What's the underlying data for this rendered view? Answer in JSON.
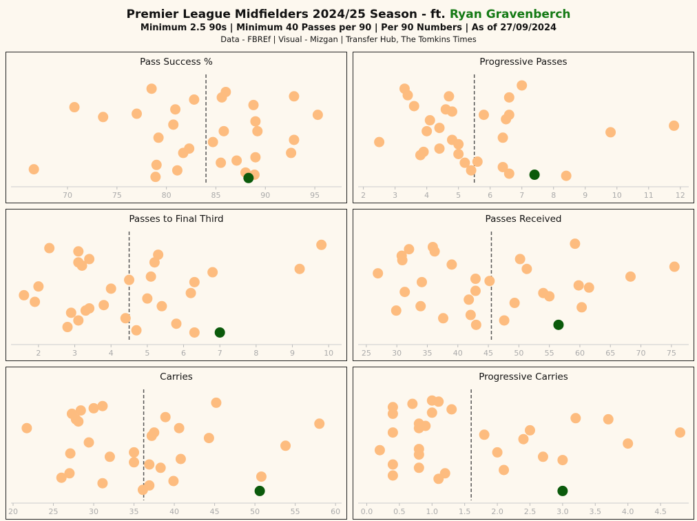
{
  "header": {
    "title_prefix": "Premier League Midfielders 2024/25 Season - ft. ",
    "player": "Ryan Gravenberch",
    "subtitle": "Minimum 2.5 90s | Minimum 40 Passes per 90 | Per 90 Numbers | As of 27/09/2024",
    "source": "Data - FBREf | Visual - Mizgan | Transfer Hub, The Tomkins Times"
  },
  "colors": {
    "others": "#fdbc7f",
    "highlight": "#0b5a0b",
    "median_line": "#555555",
    "panel_bg": "#fdf8ef",
    "title_player": "#157a15"
  },
  "chart_data": [
    {
      "type": "scatter",
      "title": "Pass Success %",
      "xlim": [
        64.5,
        97.5
      ],
      "ticks": [
        70,
        75,
        80,
        85,
        90,
        95
      ],
      "tick_labels": [
        "70",
        "75",
        "80",
        "85",
        "90",
        "95"
      ],
      "median": 84.0,
      "x": [
        86.0,
        78.5,
        92.9,
        88.8,
        70.7,
        82.8,
        85.6,
        95.3,
        73.6,
        77.0,
        80.9,
        89.0,
        80.7,
        85.8,
        89.2,
        79.2,
        84.7,
        92.9,
        82.3,
        81.7,
        89.0,
        92.6,
        87.1,
        85.5,
        79.0,
        88.0,
        81.1,
        66.6,
        78.9,
        88.9
      ],
      "y": [
        0.82,
        0.85,
        0.78,
        0.7,
        0.68,
        0.75,
        0.77,
        0.61,
        0.59,
        0.62,
        0.66,
        0.55,
        0.52,
        0.46,
        0.46,
        0.4,
        0.36,
        0.38,
        0.3,
        0.26,
        0.22,
        0.26,
        0.19,
        0.17,
        0.15,
        0.08,
        0.1,
        0.11,
        0.04,
        0.06
      ],
      "highlight": {
        "x": 88.3,
        "y": 0.03
      }
    },
    {
      "type": "scatter",
      "title": "Progressive Passes",
      "xlim": [
        1.9,
        12.2
      ],
      "ticks": [
        2,
        3,
        4,
        5,
        6,
        7,
        8,
        9,
        10,
        11,
        12
      ],
      "tick_labels": [
        "2",
        "3",
        "4",
        "5",
        "6",
        "7",
        "8",
        "9",
        "10",
        "11",
        "12"
      ],
      "median": 5.5,
      "x": [
        3.3,
        3.4,
        4.7,
        7.0,
        3.6,
        6.6,
        4.6,
        4.8,
        5.8,
        6.5,
        6.6,
        4.1,
        4.4,
        11.8,
        4.0,
        9.8,
        6.4,
        4.8,
        2.5,
        5.0,
        4.4,
        3.9,
        5.0,
        3.8,
        5.6,
        5.2,
        6.4,
        5.4,
        6.6,
        8.4
      ],
      "y": [
        0.85,
        0.79,
        0.78,
        0.88,
        0.69,
        0.77,
        0.66,
        0.64,
        0.61,
        0.57,
        0.61,
        0.56,
        0.49,
        0.51,
        0.46,
        0.45,
        0.4,
        0.38,
        0.36,
        0.34,
        0.3,
        0.27,
        0.25,
        0.24,
        0.18,
        0.17,
        0.13,
        0.1,
        0.07,
        0.05
      ],
      "highlight": {
        "x": 7.4,
        "y": 0.06
      }
    },
    {
      "type": "scatter",
      "title": "Passes to Final Third",
      "xlim": [
        1.3,
        10.3
      ],
      "ticks": [
        2,
        3,
        4,
        5,
        6,
        7,
        8,
        9,
        10
      ],
      "tick_labels": [
        "2",
        "3",
        "4",
        "5",
        "6",
        "7",
        "8",
        "9",
        "10"
      ],
      "median": 4.5,
      "x": [
        9.8,
        2.3,
        3.1,
        5.3,
        3.4,
        5.2,
        3.1,
        3.2,
        9.2,
        6.8,
        5.1,
        4.5,
        2.0,
        6.3,
        4.0,
        1.6,
        6.2,
        1.9,
        5.0,
        3.8,
        5.4,
        3.4,
        3.3,
        2.9,
        4.4,
        3.1,
        5.8,
        2.8,
        4.7,
        6.3
      ],
      "y": [
        0.86,
        0.83,
        0.8,
        0.77,
        0.73,
        0.7,
        0.7,
        0.67,
        0.64,
        0.61,
        0.57,
        0.54,
        0.48,
        0.52,
        0.46,
        0.4,
        0.42,
        0.34,
        0.37,
        0.31,
        0.3,
        0.28,
        0.26,
        0.24,
        0.19,
        0.17,
        0.14,
        0.11,
        0.08,
        0.06
      ],
      "highlight": {
        "x": 7.0,
        "y": 0.06
      }
    },
    {
      "type": "scatter",
      "title": "Passes Received",
      "xlim": [
        24.0,
        77.5
      ],
      "ticks": [
        25,
        30,
        35,
        40,
        45,
        50,
        55,
        60,
        65,
        70,
        75
      ],
      "tick_labels": [
        "25",
        "30",
        "35",
        "40",
        "45",
        "50",
        "55",
        "60",
        "65",
        "70",
        "75"
      ],
      "median": 45.5,
      "x": [
        59.2,
        35.9,
        32.0,
        36.2,
        30.8,
        50.2,
        30.9,
        39.0,
        75.5,
        51.3,
        26.9,
        42.9,
        68.3,
        45.2,
        34.1,
        59.8,
        61.5,
        31.3,
        54.0,
        55.0,
        42.9,
        41.8,
        49.3,
        33.9,
        60.3,
        29.9,
        42.1,
        37.6,
        47.6,
        43.0
      ],
      "y": [
        0.87,
        0.84,
        0.82,
        0.8,
        0.76,
        0.73,
        0.72,
        0.68,
        0.66,
        0.64,
        0.6,
        0.55,
        0.57,
        0.53,
        0.52,
        0.49,
        0.47,
        0.43,
        0.42,
        0.39,
        0.44,
        0.36,
        0.33,
        0.3,
        0.29,
        0.26,
        0.22,
        0.19,
        0.17,
        0.13
      ],
      "highlight": {
        "x": 56.5,
        "y": 0.13
      }
    },
    {
      "type": "scatter",
      "title": "Carries",
      "xlim": [
        20.0,
        60.5
      ],
      "ticks": [
        20,
        25,
        30,
        35,
        40,
        45,
        50,
        55,
        60
      ],
      "tick_labels": [
        "20",
        "25",
        "30",
        "35",
        "40",
        "45",
        "50",
        "55",
        "60"
      ],
      "median": 36.2,
      "x": [
        45.2,
        31.1,
        30.0,
        28.4,
        27.3,
        38.9,
        27.8,
        28.1,
        58.0,
        21.7,
        40.6,
        37.5,
        37.2,
        44.3,
        29.4,
        53.8,
        35.0,
        27.1,
        32.0,
        35.0,
        40.8,
        36.9,
        38.3,
        27.0,
        50.8,
        26.0,
        39.9,
        31.1,
        36.9,
        36.1
      ],
      "y": [
        0.86,
        0.83,
        0.81,
        0.79,
        0.76,
        0.73,
        0.71,
        0.69,
        0.67,
        0.63,
        0.63,
        0.59,
        0.56,
        0.54,
        0.5,
        0.47,
        0.41,
        0.4,
        0.37,
        0.32,
        0.35,
        0.3,
        0.27,
        0.22,
        0.19,
        0.18,
        0.15,
        0.13,
        0.11,
        0.07
      ],
      "highlight": {
        "x": 50.6,
        "y": 0.06
      }
    },
    {
      "type": "scatter",
      "title": "Progressive Carries",
      "xlim": [
        -0.1,
        4.9
      ],
      "ticks": [
        0.0,
        0.5,
        1.0,
        1.5,
        2.0,
        2.5,
        3.0,
        3.5,
        4.0,
        4.5
      ],
      "tick_labels": [
        "0.0",
        "0.5",
        "1.0",
        "1.5",
        "2.0",
        "2.5",
        "3.0",
        "3.5",
        "4.0",
        "4.5"
      ],
      "median": 1.6,
      "x": [
        1.0,
        1.1,
        0.7,
        0.4,
        1.3,
        1.0,
        0.4,
        3.2,
        3.7,
        0.9,
        0.8,
        0.8,
        4.8,
        2.5,
        1.8,
        0.4,
        2.4,
        4.0,
        0.8,
        0.2,
        2.0,
        0.8,
        2.7,
        3.0,
        0.4,
        0.8,
        2.1,
        1.2,
        0.4,
        1.1
      ],
      "y": [
        0.88,
        0.87,
        0.85,
        0.82,
        0.8,
        0.77,
        0.76,
        0.72,
        0.71,
        0.65,
        0.67,
        0.63,
        0.59,
        0.61,
        0.57,
        0.59,
        0.53,
        0.49,
        0.44,
        0.43,
        0.41,
        0.39,
        0.37,
        0.34,
        0.3,
        0.27,
        0.25,
        0.22,
        0.2,
        0.17
      ],
      "highlight": {
        "x": 3.0,
        "y": 0.06
      }
    }
  ]
}
